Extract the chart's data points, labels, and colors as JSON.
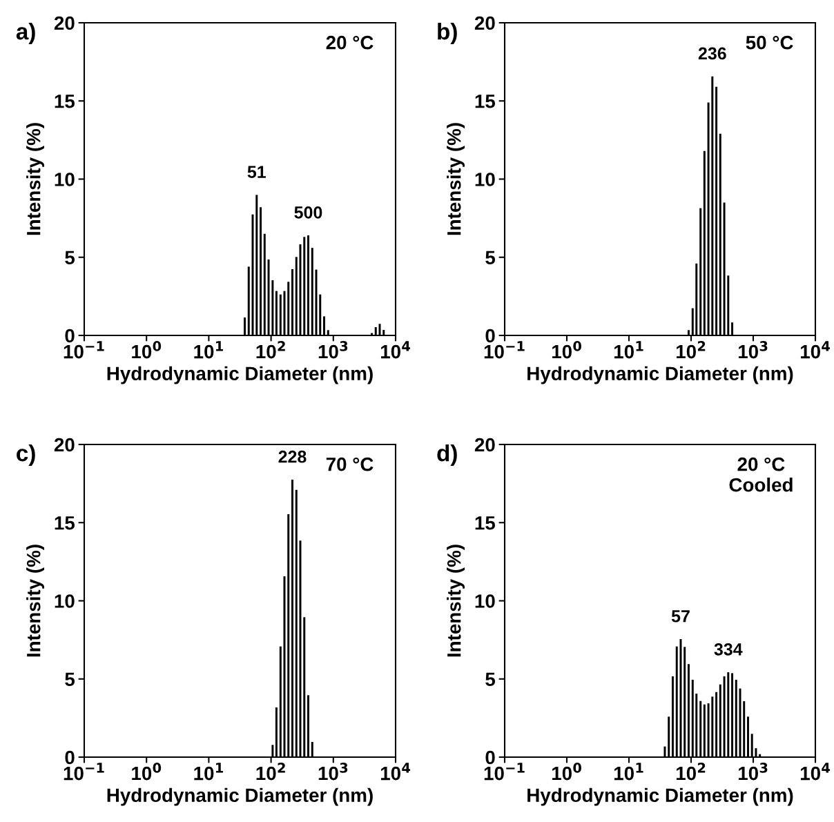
{
  "chart_data": [
    {
      "type": "bar",
      "title": "a)",
      "xlabel": "Hydrodynamic Diameter (nm)",
      "ylabel": "Intensity (%)",
      "log": "x",
      "grid": false,
      "color": "#000000",
      "x": [
        37.8,
        43.8,
        50.7,
        58.8,
        68.1,
        78.8,
        91.3,
        106,
        122,
        142,
        164,
        190,
        220,
        255,
        295,
        342,
        396,
        459,
        531,
        615,
        712,
        825,
        4145,
        4801,
        5560,
        6439
      ],
      "values": [
        1.15,
        4.4,
        7.74,
        8.99,
        8.2,
        6.5,
        4.86,
        3.53,
        2.84,
        2.62,
        2.84,
        3.43,
        4.24,
        5.02,
        5.83,
        6.3,
        6.4,
        5.6,
        4.21,
        2.62,
        1.22,
        0.34,
        0.15,
        0.53,
        0.74,
        0.35
      ],
      "xlim": [
        0.1,
        10000
      ],
      "xticks": [
        {
          "value": 0.1,
          "label": "10$^{−1}$"
        },
        {
          "value": 1,
          "label": "10$^{0}$"
        },
        {
          "value": 10,
          "label": "10$^{1}$"
        },
        {
          "value": 100,
          "label": "10$^{2}$"
        },
        {
          "value": 1000,
          "label": "10$^{3}$"
        },
        {
          "value": 10000,
          "label": "10$^{4}$"
        }
      ],
      "ylim": [
        0,
        20
      ],
      "yticks": [
        0,
        5,
        10,
        15,
        20
      ],
      "annotations": [
        "20 °C",
        "51",
        "500"
      ]
    },
    {
      "type": "bar",
      "title": "b)",
      "xlabel": "Hydrodynamic Diameter (nm)",
      "ylabel": "Intensity (%)",
      "log": "x",
      "grid": false,
      "color": "#000000",
      "x": [
        91.3,
        106,
        122,
        142,
        164,
        190,
        220,
        255,
        295,
        342,
        396,
        459
      ],
      "values": [
        0.34,
        1.74,
        4.6,
        8.14,
        11.8,
        14.9,
        16.57,
        15.9,
        12.9,
        8.5,
        3.83,
        0.83
      ],
      "xlim": [
        0.1,
        10000
      ],
      "xticks": [
        {
          "value": 0.1,
          "label": "10$^{−1}$"
        },
        {
          "value": 1,
          "label": "10$^{0}$"
        },
        {
          "value": 10,
          "label": "10$^{1}$"
        },
        {
          "value": 100,
          "label": "10$^{2}$"
        },
        {
          "value": 1000,
          "label": "10$^{3}$"
        },
        {
          "value": 10000,
          "label": "10$^{4}$"
        }
      ],
      "ylim": [
        0,
        20
      ],
      "yticks": [
        0,
        5,
        10,
        15,
        20
      ],
      "annotations": [
        "50 °C",
        "236"
      ]
    },
    {
      "type": "bar",
      "title": "c)",
      "xlabel": "Hydrodynamic Diameter (nm)",
      "ylabel": "Intensity (%)",
      "log": "x",
      "grid": false,
      "color": "#000000",
      "x": [
        106,
        122,
        142,
        164,
        190,
        220,
        255,
        295,
        342,
        396,
        459
      ],
      "values": [
        0.78,
        3.18,
        7.08,
        11.57,
        15.54,
        17.75,
        17.1,
        13.85,
        8.95,
        3.96,
        0.97
      ],
      "xlim": [
        0.1,
        10000
      ],
      "xticks": [
        {
          "value": 0.1,
          "label": "10$^{−1}$"
        },
        {
          "value": 1,
          "label": "10$^{0}$"
        },
        {
          "value": 10,
          "label": "10$^{1}$"
        },
        {
          "value": 100,
          "label": "10$^{2}$"
        },
        {
          "value": 1000,
          "label": "10$^{3}$"
        },
        {
          "value": 10000,
          "label": "10$^{4}$"
        }
      ],
      "ylim": [
        0,
        20
      ],
      "yticks": [
        0,
        5,
        10,
        15,
        20
      ],
      "annotations": [
        "70 °C",
        "228"
      ]
    },
    {
      "type": "bar",
      "title": "d)",
      "xlabel": "Hydrodynamic Diameter (nm)",
      "ylabel": "Intensity (%)",
      "log": "x",
      "grid": false,
      "color": "#000000",
      "x": [
        37.8,
        43.8,
        50.7,
        58.8,
        68.1,
        78.8,
        91.3,
        106,
        122,
        142,
        164,
        190,
        220,
        255,
        295,
        342,
        396,
        459,
        531,
        615,
        712,
        825,
        955,
        1106,
        1281
      ],
      "values": [
        0.68,
        2.59,
        5.17,
        7.08,
        7.55,
        7.05,
        5.95,
        4.95,
        4.06,
        3.59,
        3.37,
        3.44,
        3.87,
        4.16,
        4.65,
        5.17,
        5.43,
        5.37,
        4.95,
        4.39,
        3.58,
        2.59,
        1.49,
        0.57,
        0.19
      ],
      "xlim": [
        0.1,
        10000
      ],
      "xticks": [
        {
          "value": 0.1,
          "label": "10$^{−1}$"
        },
        {
          "value": 1,
          "label": "10$^{0}$"
        },
        {
          "value": 10,
          "label": "10$^{1}$"
        },
        {
          "value": 100,
          "label": "10$^{2}$"
        },
        {
          "value": 1000,
          "label": "10$^{3}$"
        },
        {
          "value": 10000,
          "label": "10$^{4}$"
        }
      ],
      "ylim": [
        0,
        20
      ],
      "yticks": [
        0,
        5,
        10,
        15,
        20
      ],
      "annotations": [
        "20 °C\nCooled",
        "57",
        "334"
      ]
    }
  ]
}
